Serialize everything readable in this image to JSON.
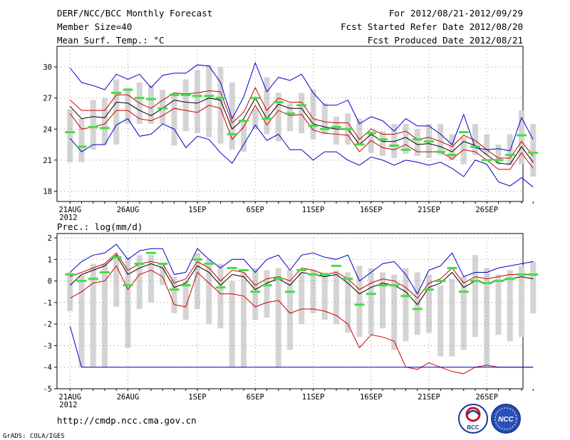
{
  "header": {
    "left_line1": "DERF/NCC/BCC Monthly Forecast",
    "left_line2": "Member Size=40",
    "left_line3": "Mean Surf. Temp.: °C",
    "right_line1": "For 2012/08/21-2012/09/29",
    "right_line2": "Fcst Started Refer Date 2012/08/20",
    "right_line3": "Fcst Produced Date 2012/08/21"
  },
  "panel2_title": "Prec.: log(mm/d)",
  "footer": {
    "url": "http://cmdp.ncc.cma.gov.cn",
    "grads": "GrADS: COLA/IGES",
    "logo1_text": "BCC",
    "logo2_text": "NCC"
  },
  "colors": {
    "box": "#d4d4d4",
    "mean": "#000000",
    "inner": "#cc0000",
    "outer": "#0000cc",
    "obs": "#44dd44",
    "grid": "#999999"
  },
  "chart_data": [
    {
      "type": "box-ensemble",
      "title": "Mean Surf. Temp.: °C",
      "ylim": [
        17,
        32
      ],
      "yticks": [
        18,
        21,
        24,
        27,
        30
      ],
      "xlim": [
        0,
        40
      ],
      "xticks": [
        {
          "day": 1,
          "label": "21AUG",
          "sub": "2012"
        },
        {
          "day": 6,
          "label": "26AUG",
          "sub": ""
        },
        {
          "day": 12,
          "label": "1SEP",
          "sub": ""
        },
        {
          "day": 17,
          "label": "6SEP",
          "sub": ""
        },
        {
          "day": 22,
          "label": "11SEP",
          "sub": ""
        },
        {
          "day": 27,
          "label": "16SEP",
          "sub": ""
        },
        {
          "day": 32,
          "label": "21SEP",
          "sub": ""
        },
        {
          "day": 37,
          "label": "26SEP",
          "sub": ""
        }
      ],
      "boxes_low": [
        20.8,
        20.8,
        22.0,
        22.5,
        22.5,
        24.5,
        24.5,
        24.5,
        24.5,
        22.4,
        23.8,
        23.6,
        23.2,
        22.6,
        22.0,
        21.8,
        24.0,
        23.5,
        22.8,
        23.8,
        23.6,
        23.0,
        23.5,
        22.5,
        22.5,
        22.6,
        21.7,
        21.4,
        21.2,
        21.6,
        21.4,
        21.2,
        21.5,
        21.0,
        20.6,
        21.5,
        21.5,
        20.6,
        20.5,
        20.6,
        19.4
      ],
      "boxes_high": [
        25.9,
        25.0,
        26.8,
        27.0,
        28.8,
        28.0,
        28.5,
        28.2,
        27.8,
        27.5,
        28.8,
        29.7,
        30.2,
        30.0,
        28.5,
        24.8,
        26.0,
        29.0,
        27.5,
        26.5,
        27.5,
        27.8,
        26.5,
        25.2,
        25.5,
        25.0,
        23.8,
        23.8,
        24.5,
        24.5,
        24.0,
        24.5,
        24.5,
        23.5,
        23.2,
        24.5,
        23.5,
        22.5,
        23.5,
        25.8,
        24.5
      ],
      "series": [
        {
          "name": "obs",
          "values": [
            23.7,
            22.3,
            24.2,
            24.1,
            27.5,
            27.8,
            27.0,
            26.9,
            26.0,
            27.3,
            27.3,
            27.2,
            27.2,
            27.0,
            23.5,
            24.8,
            27.0,
            25.0,
            26.6,
            25.5,
            26.3,
            24.3,
            24.0,
            24.2,
            24.0,
            22.5,
            23.6,
            23.0,
            22.4,
            22.0,
            23.0,
            22.8,
            21.8,
            21.5,
            23.7,
            22.3,
            21.0,
            21.0,
            21.5,
            23.4,
            21.7
          ]
        },
        {
          "name": "mean",
          "values": [
            26.2,
            25.0,
            25.2,
            25.1,
            26.6,
            26.5,
            25.8,
            25.3,
            26.0,
            26.8,
            26.6,
            26.5,
            27.0,
            26.8,
            24.0,
            25.0,
            27.0,
            25.0,
            26.4,
            26.0,
            26.0,
            24.5,
            24.2,
            24.0,
            24.0,
            22.5,
            23.5,
            22.8,
            22.8,
            23.2,
            22.5,
            22.6,
            22.3,
            21.8,
            22.8,
            22.4,
            21.5,
            20.7,
            20.6,
            22.3,
            20.8
          ]
        },
        {
          "name": "upper",
          "values": [
            26.8,
            25.8,
            25.8,
            25.8,
            27.3,
            27.3,
            26.5,
            26.0,
            26.8,
            27.5,
            27.4,
            27.5,
            27.7,
            27.6,
            24.6,
            25.6,
            28.0,
            25.8,
            27.0,
            26.6,
            26.6,
            25.0,
            24.7,
            24.6,
            24.6,
            23.0,
            24.0,
            23.5,
            23.5,
            23.8,
            23.0,
            23.2,
            22.8,
            22.3,
            23.4,
            22.9,
            22.0,
            21.2,
            21.2,
            22.8,
            21.4
          ]
        },
        {
          "name": "lower",
          "values": [
            25.5,
            24.0,
            24.2,
            24.5,
            25.8,
            25.8,
            25.0,
            24.8,
            25.3,
            26.0,
            25.8,
            25.6,
            26.3,
            26.0,
            23.0,
            24.2,
            26.3,
            24.4,
            25.8,
            25.3,
            25.4,
            23.9,
            23.6,
            23.5,
            23.4,
            21.8,
            22.9,
            22.2,
            22.0,
            22.5,
            21.8,
            21.8,
            21.8,
            21.1,
            22.0,
            21.8,
            21.0,
            20.1,
            20.1,
            21.7,
            20.2
          ]
        },
        {
          "name": "max",
          "values": [
            29.9,
            28.5,
            28.2,
            27.8,
            29.3,
            28.8,
            29.3,
            28.0,
            29.2,
            29.4,
            29.4,
            30.2,
            30.1,
            28.5,
            25.0,
            27.1,
            30.4,
            27.6,
            29.0,
            28.7,
            29.3,
            27.5,
            26.3,
            26.3,
            26.8,
            24.5,
            25.2,
            24.8,
            23.8,
            25.0,
            24.3,
            24.3,
            23.5,
            22.5,
            25.4,
            22.2,
            22.0,
            22.1,
            21.9,
            25.1,
            23.0
          ]
        },
        {
          "name": "min",
          "values": [
            23.1,
            21.8,
            22.5,
            22.5,
            24.4,
            25.0,
            23.3,
            23.5,
            24.5,
            24.0,
            22.2,
            23.3,
            23.0,
            21.7,
            20.7,
            22.5,
            24.4,
            22.9,
            23.5,
            22.0,
            22.0,
            21.0,
            21.8,
            21.8,
            21.0,
            20.5,
            21.3,
            21.0,
            20.5,
            21.0,
            20.8,
            20.5,
            20.8,
            20.2,
            19.4,
            21.0,
            20.6,
            18.9,
            18.5,
            19.3,
            18.4
          ]
        }
      ]
    },
    {
      "type": "box-ensemble",
      "title": "Prec.: log(mm/d)",
      "ylim": [
        -5,
        2.2
      ],
      "yticks": [
        -5,
        -4,
        -3,
        -2,
        -1,
        0,
        1,
        2
      ],
      "xlim": [
        0,
        40
      ],
      "xticks": [
        {
          "day": 1,
          "label": "21AUG",
          "sub": "2012"
        },
        {
          "day": 6,
          "label": "26AUG",
          "sub": ""
        },
        {
          "day": 12,
          "label": "1SEP",
          "sub": ""
        },
        {
          "day": 17,
          "label": "6SEP",
          "sub": ""
        },
        {
          "day": 22,
          "label": "11SEP",
          "sub": ""
        },
        {
          "day": 27,
          "label": "16SEP",
          "sub": ""
        },
        {
          "day": 32,
          "label": "21SEP",
          "sub": ""
        },
        {
          "day": 37,
          "label": "26SEP",
          "sub": ""
        }
      ],
      "boxes_low": [
        -1.4,
        -4.0,
        -4.0,
        -4.0,
        -1.2,
        -3.1,
        -1.3,
        -1.0,
        -0.2,
        -1.5,
        -1.8,
        -1.3,
        -2.0,
        -2.2,
        -4.0,
        -4.0,
        -1.8,
        -1.7,
        -4.0,
        -3.2,
        -2.0,
        -1.5,
        -1.8,
        -2.0,
        -2.4,
        -2.6,
        -2.5,
        -2.2,
        -3.2,
        -2.8,
        -2.5,
        -2.4,
        -3.5,
        -3.5,
        -3.2,
        -2.6,
        -4.0,
        -2.5,
        -2.8,
        -2.6,
        -1.5
      ],
      "boxes_high": [
        0.4,
        0.3,
        0.8,
        0.8,
        1.1,
        1.1,
        1.2,
        1.2,
        0.8,
        0.2,
        0.0,
        1.3,
        1.0,
        0.8,
        0.0,
        0.4,
        0.6,
        0.5,
        0.6,
        0.5,
        0.4,
        0.5,
        0.4,
        0.5,
        0.4,
        0.7,
        0.6,
        0.4,
        0.3,
        0.6,
        0.4,
        0.3,
        -0.2,
        0.1,
        0.2,
        1.2,
        0.6,
        0.3,
        0.5,
        0.7,
        0.9
      ],
      "series": [
        {
          "name": "obs",
          "values": [
            0.3,
            0.0,
            0.1,
            0.4,
            1.1,
            -0.2,
            0.8,
            1.3,
            0.8,
            -0.4,
            -0.2,
            1.0,
            0.8,
            -0.3,
            0.6,
            0.5,
            -0.5,
            -0.2,
            0.1,
            -0.5,
            0.5,
            0.3,
            0.3,
            0.7,
            0.1,
            -1.1,
            -0.6,
            -0.2,
            -0.2,
            -0.7,
            -1.3,
            -0.4,
            0.0,
            0.6,
            -0.5,
            0.0,
            -0.1,
            0.0,
            0.1,
            0.3,
            0.3
          ]
        },
        {
          "name": "mean",
          "values": [
            -0.2,
            0.3,
            0.5,
            0.7,
            1.2,
            0.3,
            0.6,
            0.8,
            0.6,
            -0.3,
            -0.1,
            0.7,
            0.4,
            -0.2,
            0.3,
            0.2,
            -0.4,
            -0.1,
            0.1,
            -0.2,
            0.4,
            0.3,
            0.2,
            0.3,
            -0.1,
            -0.6,
            -0.3,
            -0.1,
            -0.2,
            -0.5,
            -1.1,
            -0.3,
            -0.1,
            0.4,
            -0.3,
            0.0,
            -0.1,
            0.0,
            0.1,
            0.2,
            0.1
          ]
        },
        {
          "name": "upper",
          "values": [
            0.2,
            0.4,
            0.6,
            0.8,
            1.3,
            0.5,
            0.8,
            0.9,
            0.8,
            -0.1,
            0.1,
            0.9,
            0.6,
            0.0,
            0.5,
            0.4,
            -0.2,
            0.1,
            0.2,
            0.0,
            0.6,
            0.5,
            0.3,
            0.4,
            0.1,
            -0.4,
            -0.1,
            0.1,
            0.0,
            -0.3,
            -0.8,
            -0.1,
            0.1,
            0.6,
            -0.1,
            0.2,
            0.1,
            0.2,
            0.3,
            0.3,
            0.3
          ]
        },
        {
          "name": "lower",
          "values": [
            -0.8,
            -0.5,
            -0.1,
            0.0,
            0.7,
            -0.4,
            0.3,
            0.5,
            0.2,
            -1.1,
            -1.2,
            0.4,
            -0.1,
            -0.6,
            -0.6,
            -0.7,
            -1.2,
            -1.0,
            -0.9,
            -1.5,
            -1.3,
            -1.3,
            -1.4,
            -1.6,
            -2.0,
            -3.1,
            -2.5,
            -2.6,
            -2.8,
            -4.0,
            -4.1,
            -3.8,
            -4.0,
            -4.2,
            -4.3,
            -4.0,
            -3.9,
            -4.0,
            -4.0,
            -4.0,
            -4.0
          ]
        },
        {
          "name": "max",
          "values": [
            0.4,
            0.9,
            1.2,
            1.3,
            1.7,
            1.0,
            1.4,
            1.5,
            1.5,
            0.3,
            0.4,
            1.5,
            1.0,
            0.6,
            1.0,
            1.0,
            0.4,
            1.0,
            1.2,
            0.5,
            1.2,
            1.3,
            1.1,
            1.0,
            1.2,
            0.0,
            0.4,
            0.8,
            0.9,
            0.3,
            -0.6,
            0.5,
            0.7,
            1.3,
            0.2,
            0.4,
            0.4,
            0.6,
            0.7,
            0.8,
            0.9
          ]
        },
        {
          "name": "min",
          "values": [
            -2.1,
            -4.0,
            -4.0,
            -4.0,
            -4.0,
            -4.0,
            -4.0,
            -4.0,
            -4.0,
            -4.0,
            -4.0,
            -4.0,
            -4.0,
            -4.0,
            -4.0,
            -4.0,
            -4.0,
            -4.0,
            -4.0,
            -4.0,
            -4.0,
            -4.0,
            -4.0,
            -4.0,
            -4.0,
            -4.0,
            -4.0,
            -4.0,
            -4.0,
            -4.0,
            -4.0,
            -4.0,
            -4.0,
            -4.0,
            -4.0,
            -4.0,
            -4.0,
            -4.0,
            -4.0,
            -4.0,
            -4.0
          ]
        }
      ]
    }
  ]
}
